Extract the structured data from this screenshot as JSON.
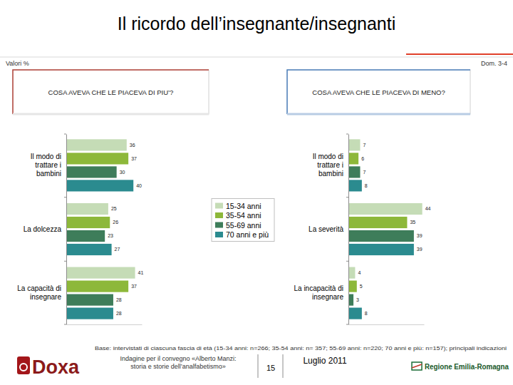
{
  "header": {
    "title": "Il ricordo dell’insegnante/insegnanti",
    "units": "Valori %",
    "question_ref": "Dom. 3-4"
  },
  "chart_data": [
    {
      "type": "bar",
      "orientation": "horizontal",
      "title": "COSA AVEVA CHE LE PIACEVA DI PIU’?",
      "categories": [
        "Il modo di trattare i bambini",
        "La dolcezza",
        "La capacità di insegnare"
      ],
      "series": [
        {
          "name": "15-34 anni",
          "color": "#c5dcb6",
          "values": [
            36,
            25,
            41
          ]
        },
        {
          "name": "35-54 anni",
          "color": "#8db83a",
          "values": [
            37,
            26,
            37
          ]
        },
        {
          "name": "55-69 anni",
          "color": "#3e7d5a",
          "values": [
            30,
            23,
            28
          ]
        },
        {
          "name": "70 anni e più",
          "color": "#2b8b8f",
          "values": [
            40,
            27,
            28
          ]
        }
      ],
      "xlim": [
        0,
        45
      ],
      "data_labels": true,
      "tick_labels": "y",
      "legend": "right"
    },
    {
      "type": "bar",
      "orientation": "horizontal",
      "title": "COSA AVEVA CHE LE PIACEVA DI MENO?",
      "categories": [
        "Il modo di trattare i bambini",
        "La severità",
        "La incapacità di insegnare"
      ],
      "series": [
        {
          "color": "#c5dcb6",
          "values": [
            7,
            44,
            4
          ]
        },
        {
          "color": "#8db83a",
          "values": [
            6,
            35,
            5
          ]
        },
        {
          "color": "#3e7d5a",
          "values": [
            7,
            39,
            3
          ]
        },
        {
          "color": "#2b8b8f",
          "values": [
            8,
            39,
            8
          ]
        }
      ],
      "xlim": [
        0,
        45
      ],
      "data_labels": true,
      "tick_labels": "y"
    }
  ],
  "footer": {
    "base": "Base: intervistati di ciascuna fascia di età (15-34 anni: n=266; 35-54 anni: n= 357; 55-69 anni: n=220; 70 anni e più: n=157); principali indicazioni",
    "survey": "Indagine per il convegno «Alberto Manzi: storia e storie dell’analfabetismo»",
    "page": "15",
    "date": "Luglio 2011",
    "logo_left": "Doxa",
    "logo_right": "Regione Emilia-Romagna"
  }
}
